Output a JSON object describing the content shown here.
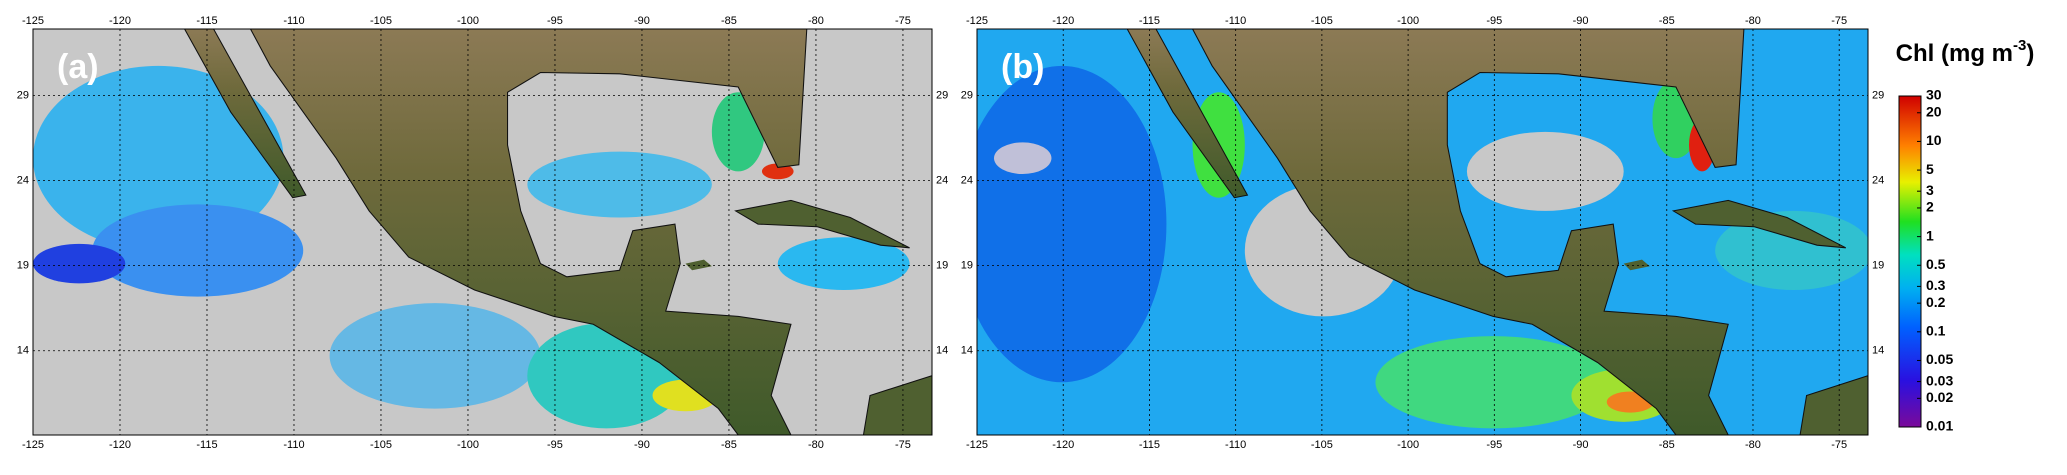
{
  "panels": [
    {
      "label": "(a)",
      "xlim": [
        -125,
        -73.33
      ],
      "ylim": [
        9.05,
        32.9
      ],
      "xticks": [
        -125,
        -120,
        -115,
        -110,
        -105,
        -100,
        -95,
        -90,
        -85,
        -80,
        -75
      ],
      "yticks": [
        14,
        19,
        24,
        29
      ],
      "grid": true
    },
    {
      "label": "(b)",
      "xlim": [
        -125,
        -73.33
      ],
      "ylim": [
        9.05,
        32.9
      ],
      "xticks": [
        -125,
        -120,
        -115,
        -110,
        -105,
        -100,
        -95,
        -90,
        -85,
        -80,
        -75
      ],
      "yticks": [
        14,
        19,
        24,
        29
      ],
      "grid": true
    }
  ],
  "colorbar": {
    "title": "Chl (mg m",
    "title_superscript": "-3",
    "title_suffix": ")",
    "log": true,
    "lim": [
      0.01,
      30
    ],
    "ticks": [
      0.01,
      0.02,
      0.03,
      0.05,
      0.1,
      0.2,
      0.3,
      0.5,
      1,
      2,
      3,
      5,
      10,
      20,
      30
    ]
  }
}
